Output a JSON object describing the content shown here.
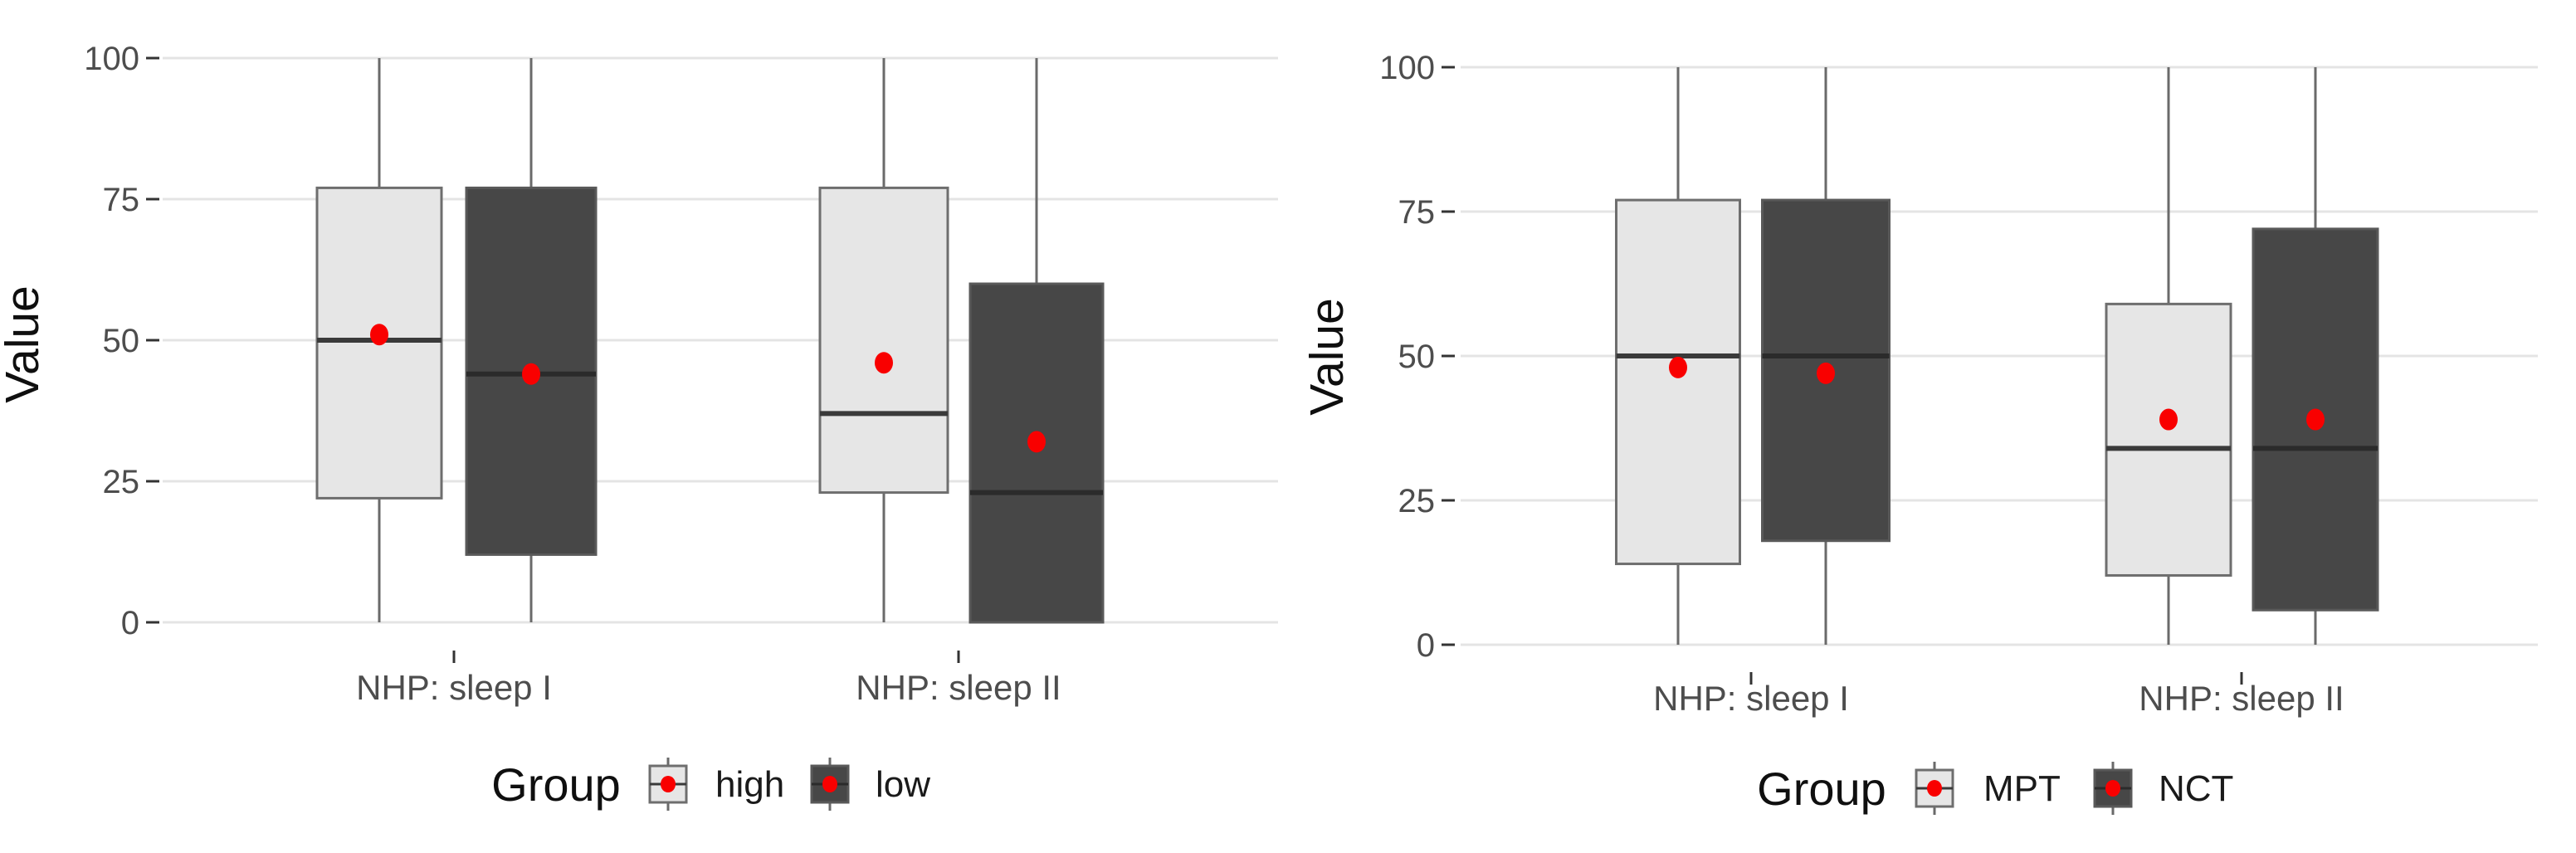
{
  "figure": {
    "background": "#ffffff",
    "description": "Two side-by-side grouped boxplot panels of Value by NHP sleep scale"
  },
  "colors": {
    "mean_dot": "#f90000",
    "gridline": "#e4e4e4",
    "axis_text": "#4d4d4d",
    "axis_title": "#0f0f0f",
    "tick_mark": "#333333",
    "whisker": "#6a6a6a"
  },
  "chart_data": [
    {
      "type": "boxplot",
      "title": "",
      "xlabel": "",
      "ylabel": "Value",
      "ylim": [
        0,
        100
      ],
      "yticks": [
        0,
        25,
        50,
        75,
        100
      ],
      "grid": "horizontal-major",
      "categories": [
        "NHP: sleep I",
        "NHP: sleep II"
      ],
      "legend_title": "Group",
      "legend_position": "bottom",
      "series": [
        {
          "name": "high",
          "fill": "#e6e6e6",
          "stroke": "#6e6e6e",
          "median_color": "#3a3a3a",
          "boxes": [
            {
              "category": "NHP: sleep I",
              "whisker_low": 0,
              "q1": 22,
              "median": 50,
              "q3": 77,
              "whisker_high": 100,
              "mean": 51
            },
            {
              "category": "NHP: sleep II",
              "whisker_low": 0,
              "q1": 23,
              "median": 37,
              "q3": 77,
              "whisker_high": 100,
              "mean": 46
            }
          ]
        },
        {
          "name": "low",
          "fill": "#474747",
          "stroke": "#595959",
          "median_color": "#2b2b2b",
          "boxes": [
            {
              "category": "NHP: sleep I",
              "whisker_low": 0,
              "q1": 12,
              "median": 44,
              "q3": 77,
              "whisker_high": 100,
              "mean": 44
            },
            {
              "category": "NHP: sleep II",
              "whisker_low": null,
              "q1": 0,
              "median": 23,
              "q3": 60,
              "whisker_high": 100,
              "mean": 32
            }
          ]
        }
      ]
    },
    {
      "type": "boxplot",
      "title": "",
      "xlabel": "",
      "ylabel": "Value",
      "ylim": [
        0,
        100
      ],
      "yticks": [
        0,
        25,
        50,
        75,
        100
      ],
      "grid": "horizontal-major",
      "categories": [
        "NHP: sleep I",
        "NHP: sleep II"
      ],
      "legend_title": "Group",
      "legend_position": "bottom",
      "series": [
        {
          "name": "MPT",
          "fill": "#e6e6e6",
          "stroke": "#6e6e6e",
          "median_color": "#3a3a3a",
          "boxes": [
            {
              "category": "NHP: sleep I",
              "whisker_low": 0,
              "q1": 14,
              "median": 50,
              "q3": 77,
              "whisker_high": 100,
              "mean": 48
            },
            {
              "category": "NHP: sleep II",
              "whisker_low": 0,
              "q1": 12,
              "median": 34,
              "q3": 59,
              "whisker_high": 100,
              "mean": 39
            }
          ]
        },
        {
          "name": "NCT",
          "fill": "#474747",
          "stroke": "#595959",
          "median_color": "#2b2b2b",
          "boxes": [
            {
              "category": "NHP: sleep I",
              "whisker_low": 0,
              "q1": 18,
              "median": 50,
              "q3": 77,
              "whisker_high": 100,
              "mean": 47
            },
            {
              "category": "NHP: sleep II",
              "whisker_low": 0,
              "q1": 6,
              "median": 34,
              "q3": 72,
              "whisker_high": 100,
              "mean": 39
            }
          ]
        }
      ]
    }
  ]
}
